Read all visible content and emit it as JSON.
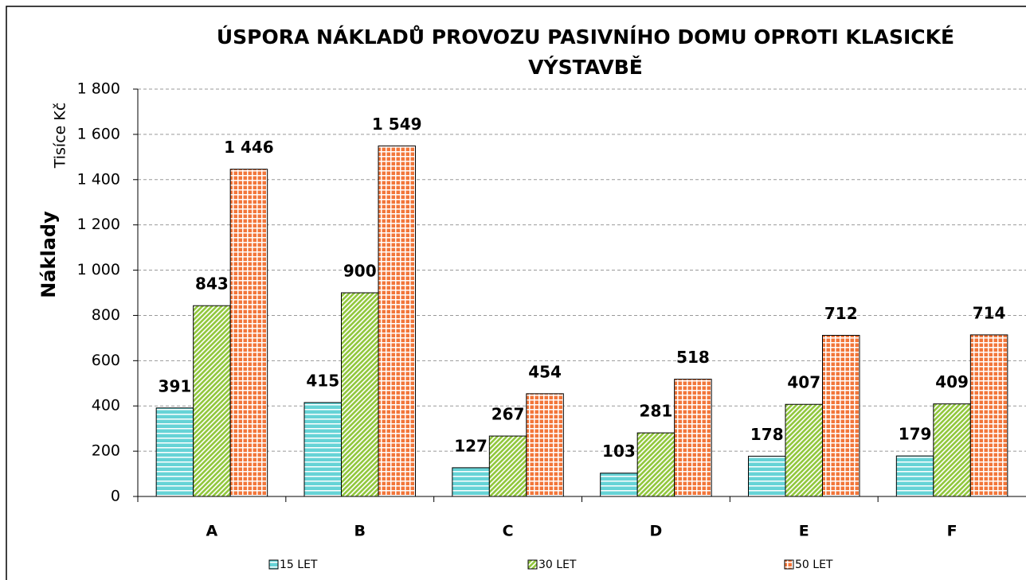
{
  "chart_data": {
    "type": "bar",
    "title": "ÚSPORA NÁKLADŮ PROVOZU PASIVNÍHO DOMU OPROTI KLASICKÉ VÝSTAVBĚ",
    "y_label": "Náklady",
    "y_unit": "Tisíce Kč",
    "categories": [
      "A",
      "B",
      "C",
      "D",
      "E",
      "F"
    ],
    "series": [
      {
        "name": "15 LET",
        "color": "#66d3d6",
        "pattern": "horizontal",
        "values": [
          391,
          415,
          127,
          103,
          178,
          179
        ]
      },
      {
        "name": "30 LET",
        "color": "#92c83e",
        "pattern": "diagonal",
        "values": [
          843,
          900,
          267,
          281,
          407,
          409
        ]
      },
      {
        "name": "50 LET",
        "color": "#f2763a",
        "pattern": "grid",
        "values": [
          1446,
          1549,
          454,
          518,
          712,
          714
        ],
        "value_labels": [
          "1 446",
          "1 549",
          "454",
          "518",
          "712",
          "714"
        ]
      }
    ],
    "ylim": [
      0,
      1800
    ],
    "yticks": [
      0,
      200,
      400,
      600,
      800,
      {
        "value": 1000,
        "label": "1 000"
      },
      {
        "value": 1200,
        "label": "1 200"
      },
      {
        "value": 1400,
        "label": "1 400"
      },
      {
        "value": 1600,
        "label": "1 600"
      },
      {
        "value": 1800,
        "label": "1 800"
      }
    ],
    "grid": true,
    "legend": "bottom"
  }
}
